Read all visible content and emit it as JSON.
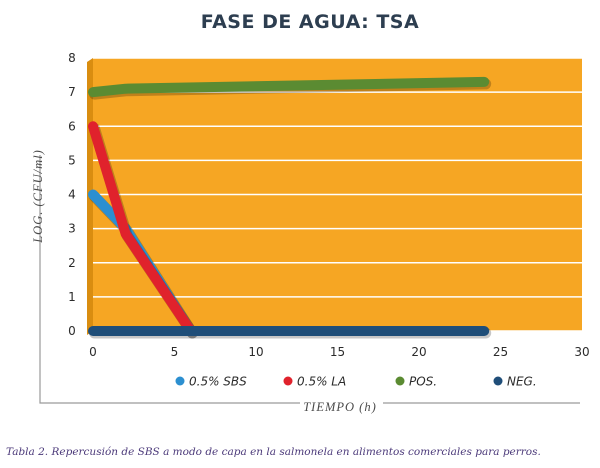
{
  "chart_data": {
    "type": "line",
    "title": "FASE DE AGUA: TSA",
    "xlabel": "TIEMPO (h)",
    "ylabel": "LOG. (CFU/ml)",
    "xlim": [
      0,
      30
    ],
    "ylim": [
      0,
      8
    ],
    "xticks": [
      0,
      5,
      10,
      15,
      20,
      25,
      30
    ],
    "yticks": [
      0,
      1,
      2,
      3,
      4,
      5,
      6,
      7,
      8
    ],
    "grid": true,
    "legend_position": "bottom",
    "background_color": "#f6a623",
    "series": [
      {
        "name": "0.5% SBS",
        "color": "#2c8fd0",
        "x": [
          0,
          2,
          6
        ],
        "y": [
          4,
          3,
          0
        ]
      },
      {
        "name": "0.5% LA",
        "color": "#e0222c",
        "x": [
          0,
          2,
          6
        ],
        "y": [
          6,
          2.85,
          0
        ]
      },
      {
        "name": "POS.",
        "color": "#5b8b32",
        "x": [
          0,
          2,
          24
        ],
        "y": [
          7,
          7.1,
          7.3
        ]
      },
      {
        "name": "NEG.",
        "color": "#1f4e79",
        "x": [
          0,
          24
        ],
        "y": [
          0,
          0
        ]
      }
    ]
  },
  "caption": "Tabla 2. Repercusión de SBS a modo de capa en la salmonela en alimentos comerciales para perros."
}
